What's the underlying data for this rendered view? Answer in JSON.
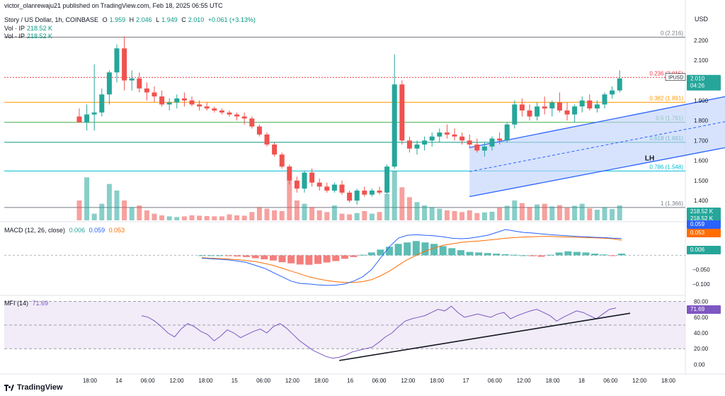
{
  "header": {
    "publisher": "victor_olanrewaju21 published on TradingView.com, Feb 18, 2025 06:55 UTC",
    "symbol": "Story / US Dollar, 1h, COINBASE",
    "open_label": "O",
    "open": "1.959",
    "high_label": "H",
    "high": "2.046",
    "low_label": "L",
    "low": "1.949",
    "close_label": "C",
    "close": "2.010",
    "change": "+0.061 (+3.13%)",
    "vol1_label": "Vol · IP",
    "vol1": "218.52 K",
    "vol2_label": "Vol · IP",
    "vol2": "218.52 K",
    "currency": "USD"
  },
  "colors": {
    "up": "#26a69a",
    "down": "#ef5350",
    "channel_fill": "#bcd0fb",
    "channel_line": "#2962ff",
    "macd_line": "#2962ff",
    "signal_line": "#ff6d00",
    "mfi_line": "#7e57c2",
    "mfi_band": "#ede7f6"
  },
  "brand": "TradingView",
  "chart_data": [
    {
      "type": "candlestick",
      "symbol": "IPUSD",
      "timeframe": "1h",
      "ylim": [
        1.33,
        2.26
      ],
      "yticks": [
        1.4,
        1.5,
        1.6,
        1.7,
        1.8,
        1.9,
        2.0,
        2.1,
        2.2
      ],
      "ytick_labels": [
        "1.400",
        "1.500",
        "1.600",
        "1.700",
        "1.800",
        "1.900",
        "2.000",
        "2.100",
        "2.200"
      ],
      "xticks": [
        "18:00",
        "14",
        "06:00",
        "12:00",
        "18:00",
        "15",
        "06:00",
        "12:00",
        "18:00",
        "16",
        "06:00",
        "12:00",
        "18:00",
        "17",
        "06:00",
        "12:00",
        "18:00",
        "18",
        "06:00",
        "12:00",
        "18:00"
      ],
      "last_price": {
        "label": "IPUSD",
        "price": "2.010",
        "countdown": "04:26",
        "value": 2.01
      },
      "fibonacci": [
        {
          "ratio": "0",
          "price": 2.216,
          "label": "0 (2.216)",
          "color": "#787b86"
        },
        {
          "ratio": "0.236",
          "price": 2.015,
          "label": "0.236 (2.015)",
          "color": "#f23645"
        },
        {
          "ratio": "0.382",
          "price": 1.891,
          "label": "0.382 (1.891)",
          "color": "#ff9800"
        },
        {
          "ratio": "0.5",
          "price": 1.791,
          "label": "0.5 (1.791)",
          "color": "#4caf50"
        },
        {
          "ratio": "0.618",
          "price": 1.691,
          "label": "0.618 (1.691)",
          "color": "#089981"
        },
        {
          "ratio": "0.786",
          "price": 1.548,
          "label": "0.786 (1.548)",
          "color": "#00bcd4"
        },
        {
          "ratio": "1",
          "price": 1.366,
          "label": "1 (1.366)",
          "color": "#787b86"
        }
      ],
      "channel": {
        "lower": [
          [
            52,
            1.42
          ],
          [
            121,
            1.915
          ]
        ],
        "upper": [
          [
            52,
            1.665
          ],
          [
            121,
            2.18
          ]
        ],
        "mid": [
          [
            52,
            1.545
          ],
          [
            121,
            2.05
          ]
        ]
      },
      "annotations": [
        {
          "text": "LH",
          "x": 76,
          "price": 1.615
        },
        {
          "text": "LH",
          "x": 113,
          "price": 1.77
        },
        {
          "text": "LH",
          "x": 120,
          "price": 1.855
        }
      ],
      "candles": [
        [
          1.82,
          1.86,
          1.79,
          1.79
        ],
        [
          1.79,
          1.88,
          1.75,
          1.83
        ],
        [
          1.83,
          2.08,
          1.75,
          1.84
        ],
        [
          1.84,
          1.96,
          1.82,
          1.93
        ],
        [
          1.93,
          2.05,
          1.88,
          2.04
        ],
        [
          2.04,
          2.18,
          1.99,
          2.16
        ],
        [
          2.16,
          2.22,
          1.95,
          2.0
        ],
        [
          2.0,
          2.05,
          1.95,
          2.01
        ],
        [
          2.01,
          2.04,
          1.94,
          1.96
        ],
        [
          1.96,
          1.99,
          1.9,
          1.94
        ],
        [
          1.94,
          1.97,
          1.89,
          1.92
        ],
        [
          1.92,
          1.95,
          1.87,
          1.88
        ],
        [
          1.88,
          1.91,
          1.85,
          1.89
        ],
        [
          1.89,
          1.93,
          1.86,
          1.91
        ],
        [
          1.91,
          1.94,
          1.87,
          1.9
        ],
        [
          1.9,
          1.92,
          1.87,
          1.88
        ],
        [
          1.88,
          1.9,
          1.85,
          1.87
        ],
        [
          1.87,
          1.89,
          1.85,
          1.86
        ],
        [
          1.86,
          1.87,
          1.84,
          1.85
        ],
        [
          1.85,
          1.86,
          1.83,
          1.84
        ],
        [
          1.84,
          1.85,
          1.82,
          1.83
        ],
        [
          1.83,
          1.84,
          1.8,
          1.82
        ],
        [
          1.82,
          1.84,
          1.78,
          1.81
        ],
        [
          1.81,
          1.82,
          1.76,
          1.77
        ],
        [
          1.77,
          1.78,
          1.72,
          1.73
        ],
        [
          1.73,
          1.74,
          1.67,
          1.68
        ],
        [
          1.68,
          1.69,
          1.62,
          1.63
        ],
        [
          1.63,
          1.64,
          1.56,
          1.57
        ],
        [
          1.57,
          1.58,
          1.48,
          1.5
        ],
        [
          1.5,
          1.52,
          1.44,
          1.46
        ],
        [
          1.46,
          1.55,
          1.44,
          1.54
        ],
        [
          1.54,
          1.56,
          1.47,
          1.49
        ],
        [
          1.49,
          1.51,
          1.45,
          1.47
        ],
        [
          1.47,
          1.49,
          1.44,
          1.45
        ],
        [
          1.45,
          1.49,
          1.44,
          1.48
        ],
        [
          1.48,
          1.5,
          1.43,
          1.44
        ],
        [
          1.44,
          1.45,
          1.39,
          1.4
        ],
        [
          1.4,
          1.46,
          1.38,
          1.45
        ],
        [
          1.45,
          1.47,
          1.42,
          1.43
        ],
        [
          1.43,
          1.46,
          1.42,
          1.45
        ],
        [
          1.45,
          1.47,
          1.43,
          1.44
        ],
        [
          1.44,
          1.58,
          1.43,
          1.57
        ],
        [
          1.57,
          2.13,
          1.56,
          1.98
        ],
        [
          1.98,
          2.0,
          1.68,
          1.7
        ],
        [
          1.7,
          1.72,
          1.64,
          1.66
        ],
        [
          1.66,
          1.7,
          1.63,
          1.68
        ],
        [
          1.68,
          1.72,
          1.65,
          1.7
        ],
        [
          1.7,
          1.74,
          1.67,
          1.72
        ],
        [
          1.72,
          1.76,
          1.69,
          1.74
        ],
        [
          1.74,
          1.78,
          1.71,
          1.73
        ],
        [
          1.73,
          1.76,
          1.7,
          1.72
        ],
        [
          1.72,
          1.74,
          1.68,
          1.7
        ],
        [
          1.7,
          1.73,
          1.66,
          1.68
        ],
        [
          1.68,
          1.71,
          1.64,
          1.65
        ],
        [
          1.65,
          1.69,
          1.62,
          1.67
        ],
        [
          1.67,
          1.72,
          1.65,
          1.71
        ],
        [
          1.71,
          1.74,
          1.68,
          1.7
        ],
        [
          1.7,
          1.79,
          1.69,
          1.78
        ],
        [
          1.78,
          1.9,
          1.76,
          1.88
        ],
        [
          1.88,
          1.91,
          1.82,
          1.85
        ],
        [
          1.85,
          1.88,
          1.8,
          1.82
        ],
        [
          1.82,
          1.89,
          1.8,
          1.87
        ],
        [
          1.87,
          1.92,
          1.83,
          1.86
        ],
        [
          1.86,
          1.9,
          1.82,
          1.89
        ],
        [
          1.89,
          1.94,
          1.84,
          1.85
        ],
        [
          1.85,
          1.89,
          1.8,
          1.83
        ],
        [
          1.83,
          1.88,
          1.79,
          1.87
        ],
        [
          1.87,
          1.92,
          1.84,
          1.9
        ],
        [
          1.9,
          1.93,
          1.85,
          1.86
        ],
        [
          1.86,
          1.9,
          1.84,
          1.88
        ],
        [
          1.88,
          1.94,
          1.86,
          1.93
        ],
        [
          1.93,
          1.97,
          1.91,
          1.95
        ],
        [
          1.95,
          2.05,
          1.94,
          2.01
        ]
      ]
    },
    {
      "type": "bar",
      "name": "Vol · IP",
      "last_value": "218.52 K",
      "values": [
        60,
        130,
        20,
        50,
        110,
        90,
        60,
        40,
        45,
        30,
        20,
        15,
        12,
        10,
        12,
        15,
        14,
        13,
        12,
        12,
        18,
        15,
        14,
        25,
        40,
        35,
        30,
        28,
        120,
        60,
        50,
        40,
        30,
        25,
        45,
        20,
        18,
        22,
        28,
        20,
        25,
        80,
        150,
        100,
        70,
        55,
        45,
        40,
        35,
        30,
        28,
        25,
        30,
        22,
        24,
        26,
        38,
        44,
        60,
        52,
        40,
        48,
        50,
        42,
        46,
        38,
        44,
        50,
        36,
        32,
        40,
        34,
        45
      ]
    },
    {
      "type": "line",
      "name": "MACD (12, 26, close)",
      "values_label": [
        "0.006",
        "0.059",
        "0.053"
      ],
      "macd_last": "0.059",
      "signal_last": "0.053",
      "hist_last": "0.006",
      "ylim": [
        -0.13,
        0.1
      ],
      "yticks": [
        -0.1,
        -0.05
      ],
      "ytick_labels": [
        "−0.100",
        "−0.050"
      ],
      "macd": [
        -0.01,
        -0.012,
        -0.014,
        -0.016,
        -0.02,
        -0.025,
        -0.035,
        -0.045,
        -0.06,
        -0.075,
        -0.09,
        -0.098,
        -0.1,
        -0.103,
        -0.105,
        -0.104,
        -0.1,
        -0.09,
        -0.075,
        -0.05,
        -0.01,
        0.03,
        0.06,
        0.07,
        0.072,
        0.07,
        0.068,
        0.065,
        0.06,
        0.058,
        0.06,
        0.065,
        0.07,
        0.08,
        0.09,
        0.085,
        0.08,
        0.078,
        0.075,
        0.072,
        0.07,
        0.068,
        0.066,
        0.065,
        0.063,
        0.062,
        0.06,
        0.059
      ],
      "signal": [
        -0.008,
        -0.01,
        -0.011,
        -0.013,
        -0.015,
        -0.018,
        -0.022,
        -0.028,
        -0.035,
        -0.045,
        -0.055,
        -0.065,
        -0.075,
        -0.082,
        -0.088,
        -0.092,
        -0.095,
        -0.095,
        -0.092,
        -0.085,
        -0.072,
        -0.055,
        -0.035,
        -0.015,
        0.0,
        0.015,
        0.025,
        0.035,
        0.04,
        0.045,
        0.048,
        0.05,
        0.053,
        0.056,
        0.06,
        0.062,
        0.064,
        0.065,
        0.066,
        0.066,
        0.065,
        0.064,
        0.063,
        0.062,
        0.061,
        0.06,
        0.058,
        0.053
      ],
      "hist": [
        0,
        0,
        0,
        -0.002,
        -0.004,
        -0.006,
        -0.01,
        -0.014,
        -0.018,
        -0.024,
        -0.028,
        -0.032,
        -0.033,
        -0.03,
        -0.025,
        -0.02,
        -0.012,
        -0.006,
        0.002,
        0.01,
        0.02,
        0.03,
        0.04,
        0.045,
        0.05,
        0.045,
        0.04,
        0.032,
        0.025,
        0.018,
        0.012,
        0.01,
        0.008,
        0.006,
        0.004,
        0.002,
        0.0,
        -0.003,
        -0.005,
        0.002,
        0.01,
        0.014,
        0.012,
        0.01,
        0.006,
        0.003,
        -0.002,
        0.006
      ]
    },
    {
      "type": "line",
      "name": "MFI (14)",
      "last_value": "71.69",
      "ylim": [
        -5,
        85
      ],
      "yticks": [
        0,
        20,
        40,
        60,
        80
      ],
      "ytick_labels": [
        "0.00",
        "20.00",
        "40.00",
        "60.00",
        "80.00"
      ],
      "bands": [
        20,
        50,
        80
      ],
      "values": [
        62,
        60,
        55,
        48,
        40,
        35,
        45,
        52,
        48,
        42,
        38,
        30,
        36,
        44,
        40,
        34,
        38,
        42,
        45,
        40,
        48,
        52,
        46,
        38,
        30,
        24,
        18,
        14,
        10,
        8,
        9,
        12,
        16,
        18,
        20,
        22,
        28,
        35,
        40,
        48,
        55,
        58,
        60,
        62,
        66,
        70,
        68,
        74,
        66,
        60,
        62,
        64,
        62,
        60,
        64,
        66,
        58,
        62,
        65,
        68,
        70,
        66,
        62,
        55,
        60,
        64,
        68,
        66,
        62,
        58,
        64,
        70,
        71.69
      ],
      "trendline": [
        [
          30,
          5
        ],
        [
          72,
          65
        ]
      ]
    }
  ]
}
